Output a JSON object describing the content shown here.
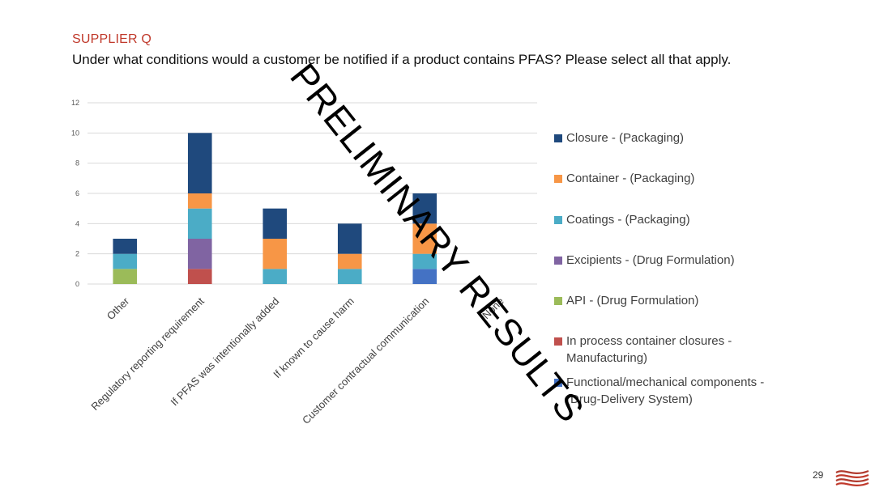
{
  "header": {
    "supplier": "SUPPLIER Q",
    "question": "Under what conditions would a customer be notified if a product contains PFAS? Please select all that apply."
  },
  "watermark": "PRELIMINARY RESULTS",
  "page_number": "29",
  "logo_icon": "brand-wave-logo-icon",
  "chart_data": {
    "type": "bar",
    "stacked": true,
    "categories": [
      "Other",
      "Regulatory reporting requirement",
      "If PFAS was intentionally added",
      "If known to cause harm",
      "Customer contractual communication",
      "None"
    ],
    "ylim": [
      0,
      12
    ],
    "yticks": [
      0,
      2,
      4,
      6,
      8,
      10,
      12
    ],
    "grid": true,
    "legend_position": "right",
    "series": [
      {
        "name": "Functional/mechanical components -\n(Drug-Delivery System)",
        "color": "#4472c4",
        "values": [
          0,
          0,
          0,
          0,
          1,
          0
        ]
      },
      {
        "name": "In process container closures -\nManufacturing)",
        "color": "#c0504d",
        "values": [
          0,
          1,
          0,
          0,
          0,
          0
        ]
      },
      {
        "name": "API - (Drug Formulation)",
        "color": "#9bbb59",
        "values": [
          1,
          0,
          0,
          0,
          0,
          0
        ]
      },
      {
        "name": "Excipients - (Drug Formulation)",
        "color": "#8064a2",
        "values": [
          0,
          2,
          0,
          0,
          0,
          0
        ]
      },
      {
        "name": "Coatings - (Packaging)",
        "color": "#4bacc6",
        "values": [
          1,
          2,
          1,
          1,
          1,
          0
        ]
      },
      {
        "name": "Container - (Packaging)",
        "color": "#f79646",
        "values": [
          0,
          1,
          2,
          1,
          2,
          0
        ]
      },
      {
        "name": "Closure - (Packaging)",
        "color": "#1f497d",
        "values": [
          1,
          4,
          2,
          2,
          2,
          0
        ]
      }
    ],
    "legend_order": [
      6,
      5,
      4,
      3,
      2,
      1,
      0
    ]
  }
}
